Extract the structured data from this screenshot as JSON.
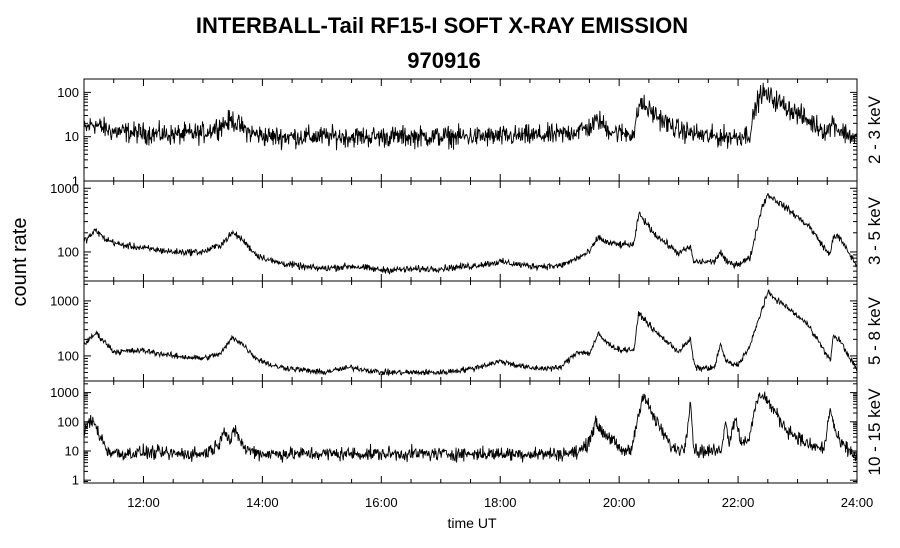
{
  "figure": {
    "title": "INTERBALL-Tail RF15-I SOFT X-RAY EMISSION",
    "subtitle": "970916",
    "ylabel": "count rate",
    "xlabel": "time UT"
  },
  "chart_data": {
    "type": "line",
    "title": "INTERBALL-Tail RF15-I SOFT X-RAY EMISSION",
    "subtitle": "970916",
    "xlabel": "time UT",
    "ylabel": "count rate",
    "xlim": [
      11.0,
      24.0
    ],
    "x_ticks": [
      12,
      14,
      16,
      18,
      20,
      22,
      24
    ],
    "x_tick_labels": [
      "12:00",
      "14:00",
      "16:00",
      "18:00",
      "20:00",
      "22:00",
      "24:00"
    ],
    "grid": false,
    "panels": [
      {
        "name": "2 - 3 keV",
        "yscale": "log",
        "ylim": [
          1,
          200
        ],
        "y_ticks": [
          1,
          10,
          100
        ],
        "y_tick_labels": [
          "1",
          "10",
          "100"
        ],
        "x": [
          11.0,
          11.15,
          11.3,
          11.5,
          12.0,
          12.5,
          13.0,
          13.3,
          13.5,
          13.6,
          13.8,
          14.1,
          14.5,
          15.0,
          16.0,
          17.0,
          18.0,
          19.0,
          19.5,
          19.65,
          19.8,
          20.0,
          20.25,
          20.35,
          20.5,
          20.8,
          21.0,
          21.5,
          22.0,
          22.2,
          22.3,
          22.4,
          22.6,
          22.9,
          23.2,
          23.5,
          23.6,
          23.7,
          24.0
        ],
        "values": [
          14,
          20,
          16,
          13,
          12,
          11,
          12,
          18,
          24,
          18,
          12,
          10,
          10,
          10,
          10,
          10,
          10,
          11,
          16,
          24,
          15,
          12,
          12,
          60,
          40,
          20,
          14,
          10,
          10,
          12,
          50,
          100,
          70,
          40,
          22,
          13,
          22,
          14,
          9
        ],
        "noise": 0.22
      },
      {
        "name": "3 - 5 keV",
        "yscale": "log",
        "ylim": [
          35,
          1300
        ],
        "y_ticks": [
          100,
          1000
        ],
        "y_tick_labels": [
          "100",
          "1000"
        ],
        "x": [
          11.0,
          11.05,
          11.2,
          11.35,
          11.6,
          12.0,
          12.5,
          13.0,
          13.3,
          13.5,
          13.65,
          13.9,
          14.2,
          14.7,
          15.0,
          15.5,
          16.0,
          17.0,
          17.5,
          18.0,
          18.5,
          19.0,
          19.3,
          19.5,
          19.65,
          19.8,
          20.0,
          20.25,
          20.33,
          20.4,
          20.6,
          21.0,
          21.2,
          21.25,
          21.3,
          21.6,
          21.7,
          21.8,
          21.9,
          22.0,
          22.2,
          22.4,
          22.5,
          22.8,
          23.2,
          23.5,
          23.55,
          23.6,
          23.7,
          24.0
        ],
        "values": [
          150,
          160,
          220,
          160,
          130,
          115,
          100,
          100,
          130,
          200,
          160,
          90,
          70,
          58,
          55,
          60,
          52,
          55,
          60,
          70,
          60,
          60,
          80,
          100,
          170,
          140,
          130,
          130,
          400,
          330,
          190,
          95,
          120,
          70,
          70,
          70,
          100,
          70,
          65,
          65,
          80,
          500,
          800,
          500,
          250,
          100,
          90,
          180,
          170,
          60
        ],
        "noise": 0.05
      },
      {
        "name": "5 - 8 keV",
        "yscale": "log",
        "ylim": [
          35,
          2300
        ],
        "y_ticks": [
          100,
          1000
        ],
        "y_tick_labels": [
          "100",
          "1000"
        ],
        "x": [
          11.0,
          11.05,
          11.2,
          11.35,
          11.5,
          11.6,
          12.0,
          12.5,
          13.0,
          13.3,
          13.5,
          13.65,
          13.9,
          14.2,
          14.7,
          15.0,
          15.5,
          16.0,
          17.0,
          17.5,
          18.0,
          18.5,
          19.0,
          19.3,
          19.5,
          19.65,
          19.8,
          20.0,
          20.25,
          20.33,
          20.4,
          20.6,
          21.0,
          21.2,
          21.25,
          21.3,
          21.6,
          21.7,
          21.8,
          21.9,
          22.0,
          22.2,
          22.4,
          22.5,
          22.8,
          23.2,
          23.5,
          23.55,
          23.6,
          23.7,
          24.0
        ],
        "values": [
          170,
          180,
          260,
          180,
          120,
          120,
          125,
          100,
          90,
          110,
          220,
          170,
          90,
          65,
          55,
          50,
          62,
          50,
          50,
          58,
          80,
          60,
          60,
          120,
          110,
          250,
          170,
          130,
          130,
          600,
          500,
          280,
          120,
          200,
          80,
          60,
          60,
          160,
          80,
          70,
          70,
          150,
          700,
          1400,
          800,
          350,
          100,
          80,
          230,
          200,
          55
        ],
        "noise": 0.05
      },
      {
        "name": "10 - 15 keV",
        "yscale": "log",
        "ylim": [
          0.8,
          2500
        ],
        "y_ticks": [
          1,
          10,
          100,
          1000
        ],
        "y_tick_labels": [
          "1",
          "10",
          "100",
          "1000"
        ],
        "x": [
          11.0,
          11.05,
          11.15,
          11.25,
          11.4,
          11.6,
          12.0,
          12.5,
          13.0,
          13.25,
          13.35,
          13.45,
          13.55,
          13.7,
          14.0,
          15.0,
          16.0,
          17.0,
          18.0,
          19.0,
          19.3,
          19.45,
          19.6,
          19.75,
          19.9,
          20.0,
          20.2,
          20.3,
          20.4,
          20.6,
          20.9,
          21.1,
          21.2,
          21.25,
          21.3,
          21.6,
          21.7,
          21.8,
          21.85,
          21.95,
          22.05,
          22.2,
          22.3,
          22.4,
          22.5,
          22.8,
          23.2,
          23.45,
          23.55,
          23.62,
          23.7,
          24.0
        ],
        "values": [
          30,
          80,
          110,
          40,
          10,
          8,
          9,
          8,
          8,
          15,
          60,
          20,
          50,
          12,
          8,
          8,
          8,
          8,
          8,
          8,
          9,
          15,
          90,
          40,
          25,
          10,
          10,
          100,
          900,
          120,
          12,
          12,
          600,
          15,
          10,
          10,
          10,
          100,
          20,
          150,
          20,
          30,
          400,
          1000,
          500,
          60,
          15,
          12,
          300,
          60,
          20,
          6
        ],
        "noise": 0.22
      }
    ]
  }
}
